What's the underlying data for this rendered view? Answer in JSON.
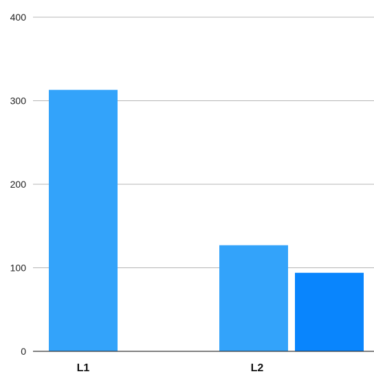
{
  "chart_data": {
    "type": "bar",
    "title": "",
    "xlabel": "",
    "ylabel": "",
    "categories": [
      "L1",
      "L2"
    ],
    "series": [
      {
        "values": [
          313,
          127
        ],
        "color": "#33a3fa"
      },
      {
        "values": [
          null,
          94
        ],
        "color": "#0985fd"
      }
    ],
    "ylim": [
      0,
      400
    ],
    "yticks": [
      0,
      100,
      200,
      300,
      400
    ],
    "grid": true,
    "legend": "none"
  }
}
